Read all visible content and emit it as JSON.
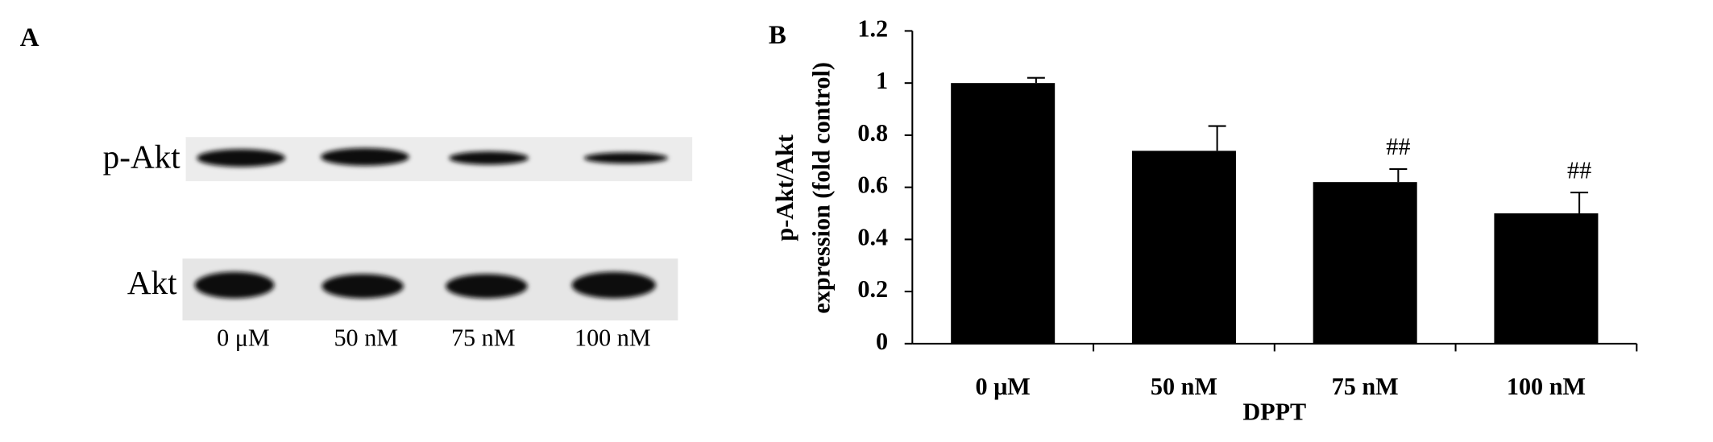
{
  "panel_a": {
    "label": "A",
    "rows": [
      "p-Akt",
      "Akt"
    ],
    "lanes": [
      "0 μM",
      "50 nM",
      "75 nM",
      "100 nM"
    ]
  },
  "chart_data": {
    "type": "bar",
    "label": "B",
    "y_label": [
      "p-Akt/Akt",
      "expression (fold control)"
    ],
    "x_label": "DPPT",
    "categories": [
      "0 μM",
      "50 nM",
      "75 nM",
      "100 nM"
    ],
    "values": [
      1.0,
      0.74,
      0.62,
      0.5
    ],
    "errors": [
      0.02,
      0.095,
      0.05,
      0.08
    ],
    "significance": [
      null,
      null,
      "##",
      "##"
    ],
    "color": "#000000",
    "ylim": [
      0,
      1.2
    ],
    "yticks": [
      0,
      0.2,
      0.4,
      0.6,
      0.8,
      1,
      1.2
    ],
    "grid": false
  }
}
